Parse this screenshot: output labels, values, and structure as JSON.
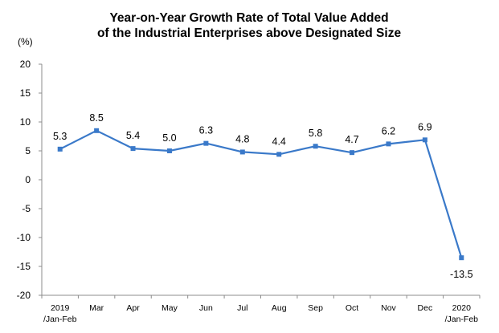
{
  "chart_data": {
    "type": "line",
    "title_line1": "Year-on-Year Growth Rate of Total Value Added",
    "title_line2": "of the Industrial Enterprises above Designated Size",
    "ylabel": "(%)",
    "ylim": [
      -20,
      20
    ],
    "yticks": [
      20,
      15,
      10,
      5,
      0,
      -5,
      -10,
      -15,
      -20
    ],
    "grid": false,
    "categories": [
      [
        "2019",
        "/Jan-Feb"
      ],
      [
        "Mar"
      ],
      [
        "Apr"
      ],
      [
        "May"
      ],
      [
        "Jun"
      ],
      [
        "Jul"
      ],
      [
        "Aug"
      ],
      [
        "Sep"
      ],
      [
        "Oct"
      ],
      [
        "Nov"
      ],
      [
        "Dec"
      ],
      [
        "2020",
        "/Jan-Feb"
      ]
    ],
    "values": [
      5.3,
      8.5,
      5.4,
      5.0,
      6.3,
      4.8,
      4.4,
      5.8,
      4.7,
      6.2,
      6.9,
      -13.5
    ],
    "labels": [
      "5.3",
      "8.5",
      "5.4",
      "5.0",
      "6.3",
      "4.8",
      "4.4",
      "5.8",
      "4.7",
      "6.2",
      "6.9",
      "-13.5"
    ],
    "line_color": "#3A79C9"
  }
}
